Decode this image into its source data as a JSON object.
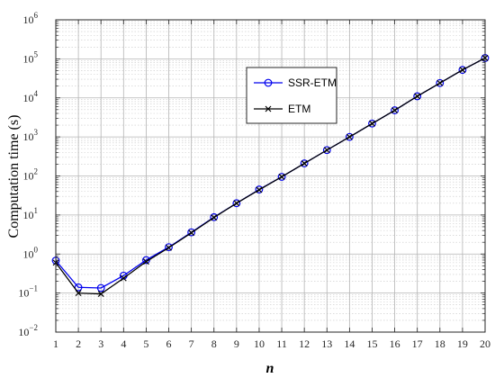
{
  "chart_data": {
    "type": "line",
    "xlabel": "n",
    "ylabel": "Computation time (s)",
    "x": [
      1,
      2,
      3,
      4,
      5,
      6,
      7,
      8,
      9,
      10,
      11,
      12,
      13,
      14,
      15,
      16,
      17,
      18,
      19,
      20
    ],
    "xlim": [
      1,
      20
    ],
    "ylim": [
      0.01,
      1000000
    ],
    "yscale": "log",
    "x_ticks": [
      "1",
      "2",
      "3",
      "4",
      "5",
      "6",
      "7",
      "8",
      "9",
      "10",
      "11",
      "12",
      "13",
      "14",
      "15",
      "16",
      "17",
      "18",
      "19",
      "20"
    ],
    "y_ticks": [
      {
        "base": "10",
        "exp": "−2"
      },
      {
        "base": "10",
        "exp": "−1"
      },
      {
        "base": "10",
        "exp": "0"
      },
      {
        "base": "10",
        "exp": "1"
      },
      {
        "base": "10",
        "exp": "2"
      },
      {
        "base": "10",
        "exp": "3"
      },
      {
        "base": "10",
        "exp": "4"
      },
      {
        "base": "10",
        "exp": "5"
      },
      {
        "base": "10",
        "exp": "6"
      }
    ],
    "grid": true,
    "minor_grid": true,
    "legend_position": "top-right-inside",
    "series": [
      {
        "name": "SSR-ETM",
        "color": "#0000ee",
        "marker": "circle",
        "values": [
          0.68,
          0.14,
          0.135,
          0.28,
          0.7,
          1.5,
          3.6,
          8.8,
          20,
          45,
          95,
          210,
          460,
          1000,
          2200,
          4800,
          11000,
          24000,
          52000,
          105000
        ]
      },
      {
        "name": "ETM",
        "color": "#000000",
        "marker": "x",
        "values": [
          0.6,
          0.1,
          0.095,
          0.24,
          0.64,
          1.45,
          3.5,
          8.6,
          20,
          44,
          95,
          210,
          460,
          1000,
          2200,
          4800,
          11000,
          24000,
          52000,
          105000
        ]
      }
    ]
  }
}
